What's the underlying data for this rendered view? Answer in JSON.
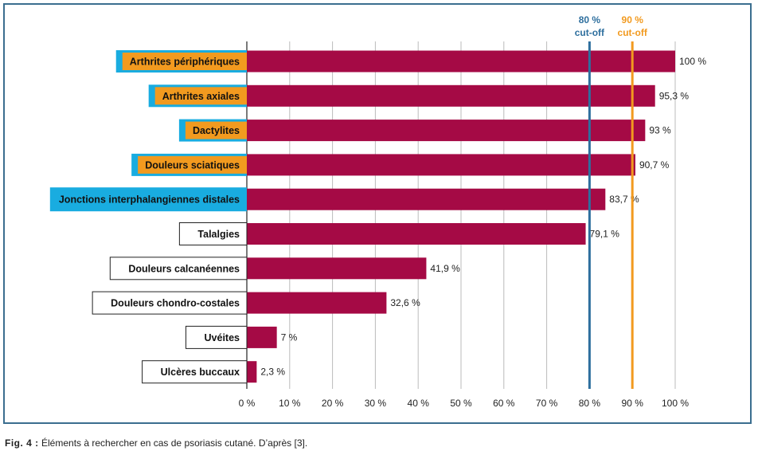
{
  "chart_data": {
    "type": "bar",
    "orientation": "horizontal",
    "categories": [
      "Arthrites périphériques",
      "Arthrites axiales",
      "Dactylites",
      "Douleurs sciatiques",
      "Jonctions interphalangiennes distales",
      "Talalgies",
      "Douleurs calcanéennes",
      "Douleurs chondro-costales",
      "Uvéites",
      "Ulcères buccaux"
    ],
    "values": [
      100,
      95.3,
      93,
      90.7,
      83.7,
      79.1,
      41.9,
      32.6,
      7,
      2.3
    ],
    "value_labels": [
      "100 %",
      "95,3 %",
      "93 %",
      "90,7 %",
      "83,7 %",
      "79,1 %",
      "41,9 %",
      "32,6 %",
      "7 %",
      "2,3 %"
    ],
    "label_styles": [
      "orange-blue",
      "orange-blue",
      "orange-blue",
      "orange-blue",
      "blue",
      "outline",
      "outline",
      "outline",
      "outline",
      "outline"
    ],
    "xlim": [
      0,
      100
    ],
    "xticks": [
      0,
      10,
      20,
      30,
      40,
      50,
      60,
      70,
      80,
      90,
      100
    ],
    "xtick_labels": [
      "0 %",
      "10 %",
      "20 %",
      "30 %",
      "40 %",
      "50 %",
      "60 %",
      "70 %",
      "80 %",
      "90 %",
      "100 %"
    ],
    "grid": "vertical",
    "reference_lines": [
      {
        "value": 80,
        "label_line1": "80 %",
        "label_line2": "cut-off",
        "color": "#2e6f9e"
      },
      {
        "value": 90,
        "label_line1": "90 %",
        "label_line2": "cut-off",
        "color": "#f29a1f"
      }
    ],
    "colors": {
      "bar": "#a50a45",
      "label_orange": "#f29a1f",
      "label_blue": "#19ace0",
      "grid": "#bbbbbb",
      "axis": "#222222",
      "frame": "#3b6e8f"
    }
  },
  "caption": {
    "fig_label": "Fig. 4 :",
    "text": "Éléments à rechercher en cas de psoriasis cutané. D’après [3]."
  }
}
